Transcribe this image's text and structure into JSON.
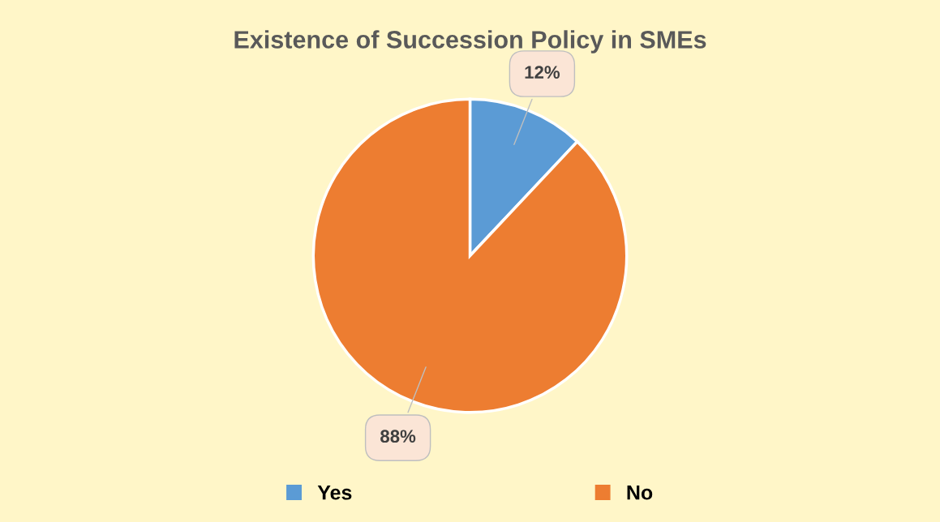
{
  "chart_data": {
    "type": "pie",
    "title": "Existence of Succession Policy in SMEs",
    "categories": [
      "Yes",
      "No"
    ],
    "values": [
      12,
      88
    ],
    "colors": [
      "#5b9bd5",
      "#ed7d31"
    ],
    "value_labels": [
      "12%",
      "88%"
    ],
    "legend": "bottom"
  }
}
